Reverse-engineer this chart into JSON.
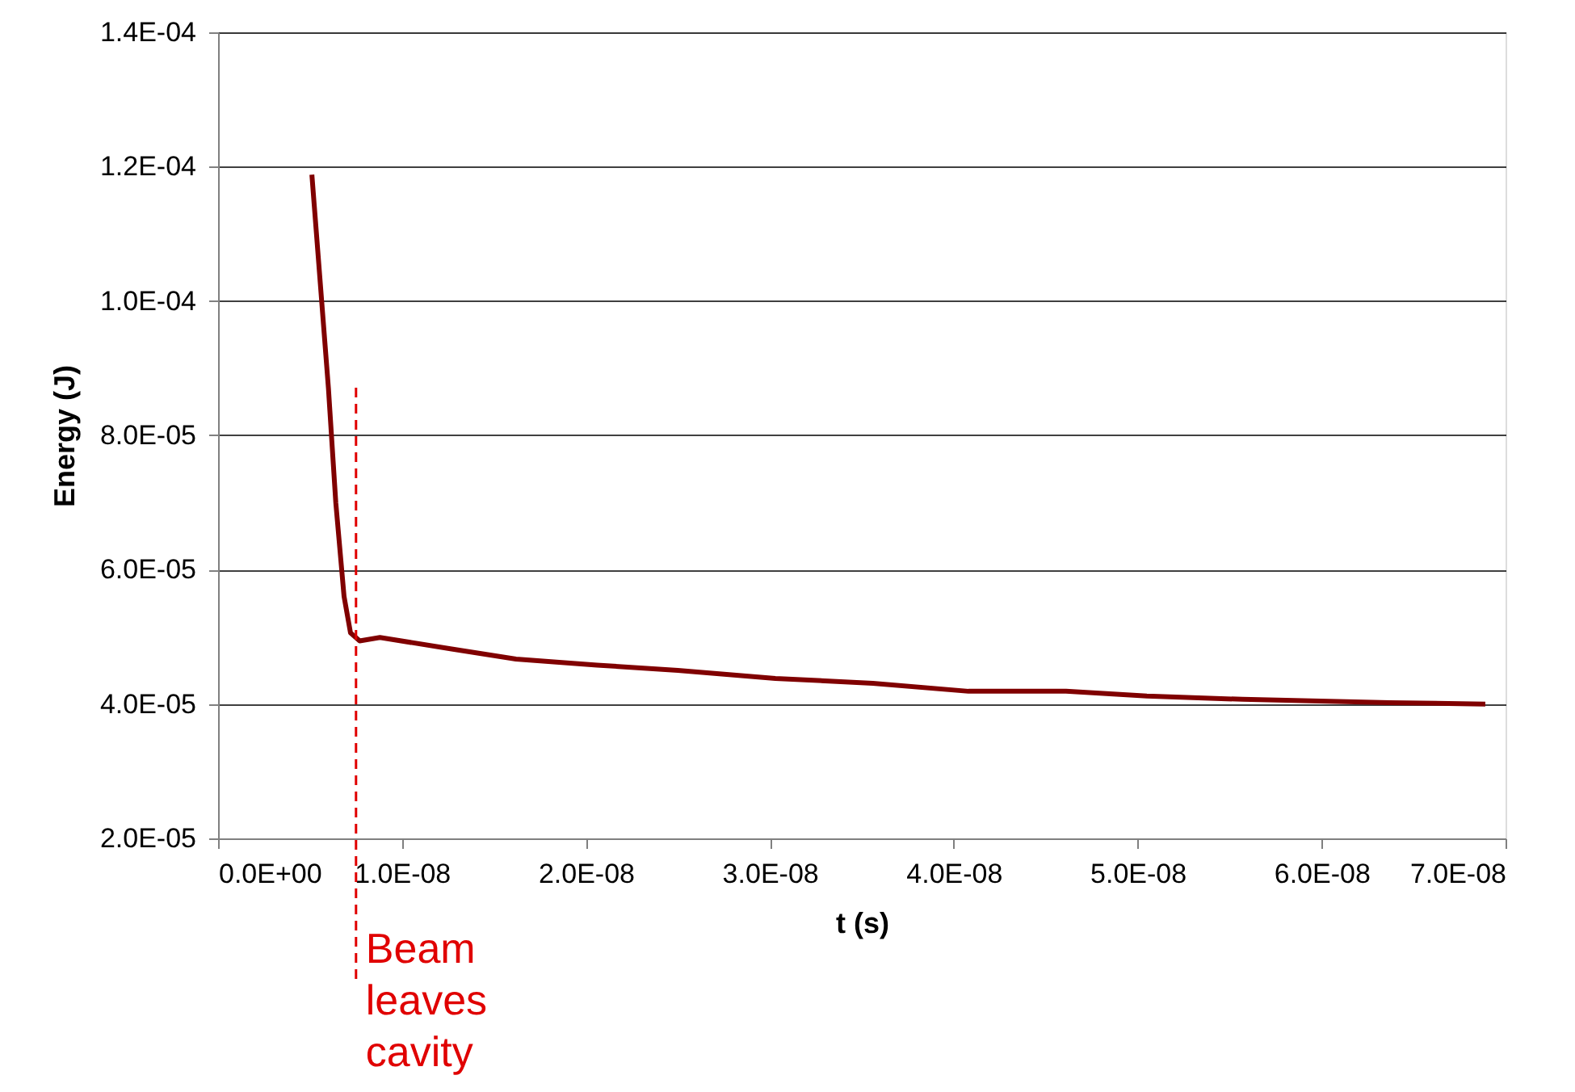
{
  "chart_data": {
    "type": "line",
    "xlabel": "t (s)",
    "ylabel": "Energy (J)",
    "x": [
      5.1e-09,
      6e-09,
      6.4e-09,
      6.85e-09,
      7.2e-09,
      7.7e-09,
      8.8e-09,
      1.27e-08,
      1.62e-08,
      2.06e-08,
      2.5e-08,
      3.03e-08,
      3.56e-08,
      4.08e-08,
      4.61e-08,
      5.05e-08,
      5.57e-08,
      6.37e-08,
      6.89e-08
    ],
    "series": [
      {
        "color": "#800000",
        "values": [
          0.0001188,
          8.7e-05,
          7e-05,
          5.6e-05,
          5.06e-05,
          4.94e-05,
          4.99e-05,
          4.82e-05,
          4.67e-05,
          4.58e-05,
          4.5e-05,
          4.38e-05,
          4.31e-05,
          4.19e-05,
          4.19e-05,
          4.12e-05,
          4.07e-05,
          4.02e-05,
          4e-05
        ]
      }
    ],
    "xlim": [
      0,
      7e-08
    ],
    "xticks": [
      {
        "value": 0,
        "label": "0.0E+00"
      },
      {
        "value": 1e-08,
        "label": "1.0E-08"
      },
      {
        "value": 2e-08,
        "label": "2.0E-08"
      },
      {
        "value": 3e-08,
        "label": "3.0E-08"
      },
      {
        "value": 4e-08,
        "label": "4.0E-08"
      },
      {
        "value": 5e-08,
        "label": "5.0E-08"
      },
      {
        "value": 6e-08,
        "label": "6.0E-08"
      },
      {
        "value": 7e-08,
        "label": "7.0E-08"
      }
    ],
    "ylim": [
      2e-05,
      0.00014
    ],
    "yticks": [
      {
        "value": 2e-05,
        "label": "2.0E-05"
      },
      {
        "value": 4e-05,
        "label": "4.0E-05"
      },
      {
        "value": 6e-05,
        "label": "6.0E-05"
      },
      {
        "value": 8e-05,
        "label": "8.0E-05"
      },
      {
        "value": 0.0001,
        "label": "1.0E-04"
      },
      {
        "value": 0.00012,
        "label": "1.2E-04"
      },
      {
        "value": 0.00014,
        "label": "1.4E-04"
      }
    ],
    "grid": "y",
    "marker": "none",
    "line_style": "solid",
    "ref_lines": [
      {
        "axis": "x",
        "value": 7.5e-09,
        "label": "Beam leaves cavity",
        "color": "#e00000",
        "line_style": "dashed"
      }
    ]
  }
}
